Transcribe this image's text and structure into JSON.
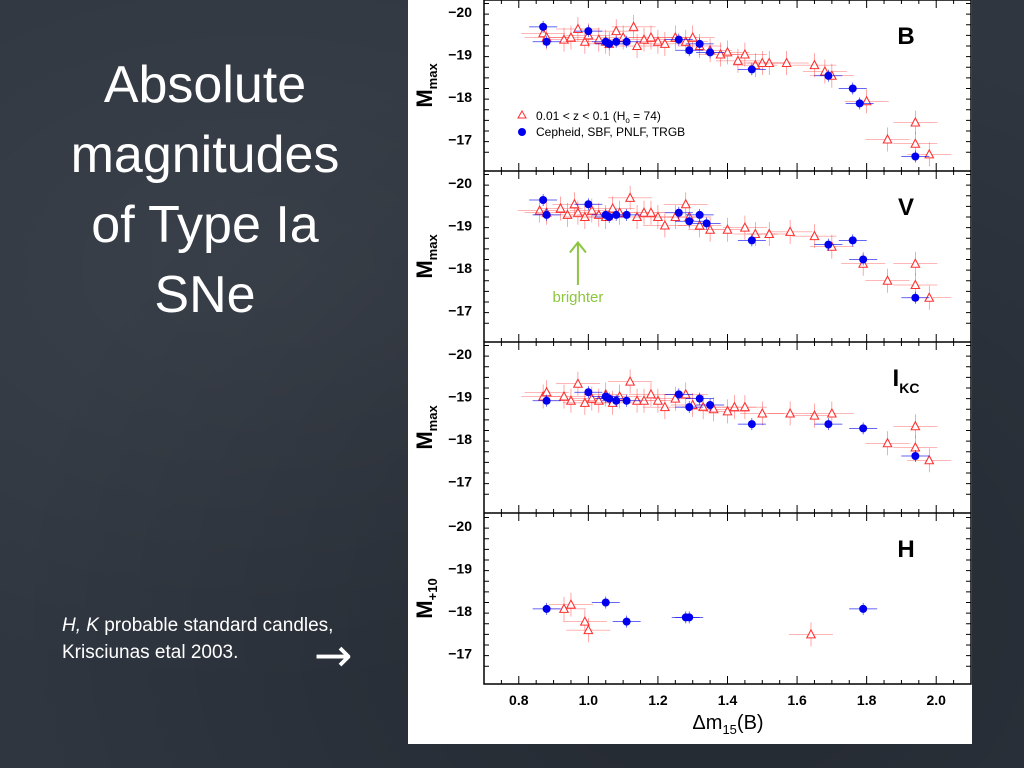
{
  "slide": {
    "title_lines": [
      "Absolute",
      "magnitudes",
      "of Type Ia",
      "SNe"
    ],
    "note_italic": "H, K",
    "note_rest": " probable standard candles,",
    "note_line2": "Krisciunas etal 2003.",
    "note_arrow": "→"
  },
  "chart_data": {
    "type": "scatter",
    "xlabel_main": "Δm",
    "xlabel_sub": "15",
    "xlabel_tail": "(B)",
    "xlim": [
      0.7,
      2.1
    ],
    "xticks": [
      0.8,
      1.0,
      1.2,
      1.4,
      1.6,
      1.8,
      2.0
    ],
    "xtick_labels": [
      "0.8",
      "1.0",
      "1.2",
      "1.4",
      "1.6",
      "1.8",
      "2.0"
    ],
    "ylim": [
      -20.2,
      -16.6
    ],
    "yticks": [
      -20,
      -19,
      -18,
      -17
    ],
    "ytick_labels": [
      "−20",
      "−19",
      "−18",
      "−17"
    ],
    "colors": {
      "triangle": "#ff3030",
      "circle": "#0000ee",
      "annotation": "#8cc63f"
    },
    "legend": {
      "placement": "lower-left of top panel",
      "entries": [
        {
          "marker": "triangle",
          "parts": [
            "0.01 < z < 0.1 (H",
            "o",
            " = 74)"
          ]
        },
        {
          "marker": "circle",
          "parts": [
            "Cepheid, SBF, PNLF, TRGB"
          ]
        }
      ]
    },
    "annotation": {
      "text": "brighter",
      "panel": 1,
      "x": 0.97,
      "y_from": -17.6,
      "y_to": -18.6,
      "label_y": -17.2
    },
    "panels": [
      {
        "band_main": "B",
        "band_sub": "",
        "ylabel_main": "M",
        "ylabel_sub": "max",
        "triangles": [
          [
            0.87,
            -19.5
          ],
          [
            0.88,
            -19.4
          ],
          [
            0.93,
            -19.35
          ],
          [
            0.95,
            -19.4
          ],
          [
            0.97,
            -19.6
          ],
          [
            0.99,
            -19.3
          ],
          [
            1.0,
            -19.45
          ],
          [
            1.03,
            -19.35
          ],
          [
            1.05,
            -19.3
          ],
          [
            1.06,
            -19.25
          ],
          [
            1.08,
            -19.55
          ],
          [
            1.1,
            -19.4
          ],
          [
            1.13,
            -19.65
          ],
          [
            1.14,
            -19.2
          ],
          [
            1.16,
            -19.35
          ],
          [
            1.18,
            -19.4
          ],
          [
            1.2,
            -19.3
          ],
          [
            1.22,
            -19.25
          ],
          [
            1.25,
            -19.4
          ],
          [
            1.28,
            -19.3
          ],
          [
            1.3,
            -19.4
          ],
          [
            1.32,
            -19.2
          ],
          [
            1.35,
            -19.1
          ],
          [
            1.38,
            -19.0
          ],
          [
            1.4,
            -19.05
          ],
          [
            1.43,
            -18.85
          ],
          [
            1.45,
            -19.0
          ],
          [
            1.48,
            -18.75
          ],
          [
            1.5,
            -18.8
          ],
          [
            1.52,
            -18.8
          ],
          [
            1.57,
            -18.8
          ],
          [
            1.65,
            -18.75
          ],
          [
            1.68,
            -18.6
          ],
          [
            1.7,
            -18.5
          ],
          [
            1.8,
            -17.9
          ],
          [
            1.86,
            -17.0
          ],
          [
            1.94,
            -17.4
          ],
          [
            1.94,
            -16.9
          ],
          [
            1.98,
            -16.65
          ]
        ],
        "circles": [
          [
            0.87,
            -19.65
          ],
          [
            0.88,
            -19.3
          ],
          [
            1.0,
            -19.55
          ],
          [
            1.05,
            -19.3
          ],
          [
            1.06,
            -19.25
          ],
          [
            1.08,
            -19.3
          ],
          [
            1.11,
            -19.3
          ],
          [
            1.26,
            -19.35
          ],
          [
            1.29,
            -19.1
          ],
          [
            1.32,
            -19.25
          ],
          [
            1.35,
            -19.05
          ],
          [
            1.47,
            -18.65
          ],
          [
            1.69,
            -18.5
          ],
          [
            1.76,
            -18.2
          ],
          [
            1.78,
            -17.85
          ],
          [
            1.94,
            -16.6
          ]
        ]
      },
      {
        "band_main": "V",
        "band_sub": "",
        "ylabel_main": "M",
        "ylabel_sub": "max",
        "triangles": [
          [
            0.86,
            -19.35
          ],
          [
            0.88,
            -19.3
          ],
          [
            0.92,
            -19.4
          ],
          [
            0.94,
            -19.25
          ],
          [
            0.96,
            -19.5
          ],
          [
            0.97,
            -19.3
          ],
          [
            0.99,
            -19.2
          ],
          [
            1.01,
            -19.35
          ],
          [
            1.03,
            -19.25
          ],
          [
            1.05,
            -19.2
          ],
          [
            1.07,
            -19.4
          ],
          [
            1.09,
            -19.3
          ],
          [
            1.12,
            -19.65
          ],
          [
            1.14,
            -19.2
          ],
          [
            1.16,
            -19.3
          ],
          [
            1.18,
            -19.3
          ],
          [
            1.2,
            -19.2
          ],
          [
            1.22,
            -19.0
          ],
          [
            1.25,
            -19.2
          ],
          [
            1.28,
            -19.5
          ],
          [
            1.29,
            -19.2
          ],
          [
            1.32,
            -19.0
          ],
          [
            1.35,
            -18.9
          ],
          [
            1.4,
            -18.9
          ],
          [
            1.45,
            -18.95
          ],
          [
            1.48,
            -18.8
          ],
          [
            1.52,
            -18.8
          ],
          [
            1.58,
            -18.85
          ],
          [
            1.65,
            -18.75
          ],
          [
            1.7,
            -18.5
          ],
          [
            1.79,
            -18.1
          ],
          [
            1.86,
            -17.7
          ],
          [
            1.94,
            -18.1
          ],
          [
            1.94,
            -17.6
          ],
          [
            1.98,
            -17.3
          ]
        ],
        "circles": [
          [
            0.87,
            -19.6
          ],
          [
            0.88,
            -19.25
          ],
          [
            1.0,
            -19.5
          ],
          [
            1.05,
            -19.25
          ],
          [
            1.06,
            -19.2
          ],
          [
            1.08,
            -19.25
          ],
          [
            1.11,
            -19.25
          ],
          [
            1.26,
            -19.3
          ],
          [
            1.29,
            -19.1
          ],
          [
            1.32,
            -19.25
          ],
          [
            1.34,
            -19.05
          ],
          [
            1.47,
            -18.65
          ],
          [
            1.69,
            -18.55
          ],
          [
            1.76,
            -18.65
          ],
          [
            1.79,
            -18.2
          ],
          [
            1.94,
            -17.3
          ]
        ]
      },
      {
        "band_main": "I",
        "band_sub": "KC",
        "ylabel_main": "M",
        "ylabel_sub": "max",
        "triangles": [
          [
            0.87,
            -19.0
          ],
          [
            0.88,
            -19.1
          ],
          [
            0.93,
            -19.0
          ],
          [
            0.95,
            -18.9
          ],
          [
            0.97,
            -19.3
          ],
          [
            0.99,
            -18.85
          ],
          [
            1.01,
            -18.95
          ],
          [
            1.03,
            -18.9
          ],
          [
            1.05,
            -19.05
          ],
          [
            1.07,
            -18.85
          ],
          [
            1.09,
            -19.0
          ],
          [
            1.12,
            -19.35
          ],
          [
            1.14,
            -18.9
          ],
          [
            1.16,
            -18.9
          ],
          [
            1.18,
            -19.05
          ],
          [
            1.2,
            -18.9
          ],
          [
            1.22,
            -18.75
          ],
          [
            1.25,
            -18.95
          ],
          [
            1.28,
            -19.05
          ],
          [
            1.3,
            -18.8
          ],
          [
            1.33,
            -18.75
          ],
          [
            1.36,
            -18.7
          ],
          [
            1.4,
            -18.65
          ],
          [
            1.42,
            -18.75
          ],
          [
            1.45,
            -18.75
          ],
          [
            1.5,
            -18.6
          ],
          [
            1.58,
            -18.6
          ],
          [
            1.65,
            -18.55
          ],
          [
            1.7,
            -18.6
          ],
          [
            1.86,
            -17.9
          ],
          [
            1.94,
            -18.3
          ],
          [
            1.94,
            -17.8
          ],
          [
            1.98,
            -17.5
          ]
        ],
        "circles": [
          [
            0.88,
            -18.9
          ],
          [
            1.0,
            -19.1
          ],
          [
            1.05,
            -19.0
          ],
          [
            1.06,
            -18.95
          ],
          [
            1.08,
            -18.9
          ],
          [
            1.11,
            -18.9
          ],
          [
            1.26,
            -19.05
          ],
          [
            1.29,
            -18.75
          ],
          [
            1.32,
            -18.95
          ],
          [
            1.35,
            -18.8
          ],
          [
            1.47,
            -18.35
          ],
          [
            1.69,
            -18.35
          ],
          [
            1.79,
            -18.25
          ],
          [
            1.94,
            -17.6
          ]
        ]
      },
      {
        "band_main": "H",
        "band_sub": "",
        "ylabel_main": "M",
        "ylabel_sub": "+10",
        "triangles": [
          [
            0.93,
            -18.05
          ],
          [
            0.95,
            -18.15
          ],
          [
            0.99,
            -17.75
          ],
          [
            1.0,
            -17.55
          ],
          [
            1.64,
            -17.45
          ]
        ],
        "circles": [
          [
            0.88,
            -18.05
          ],
          [
            1.05,
            -18.2
          ],
          [
            1.11,
            -17.75
          ],
          [
            1.28,
            -17.85
          ],
          [
            1.29,
            -17.85
          ],
          [
            1.79,
            -18.05
          ]
        ]
      }
    ]
  }
}
